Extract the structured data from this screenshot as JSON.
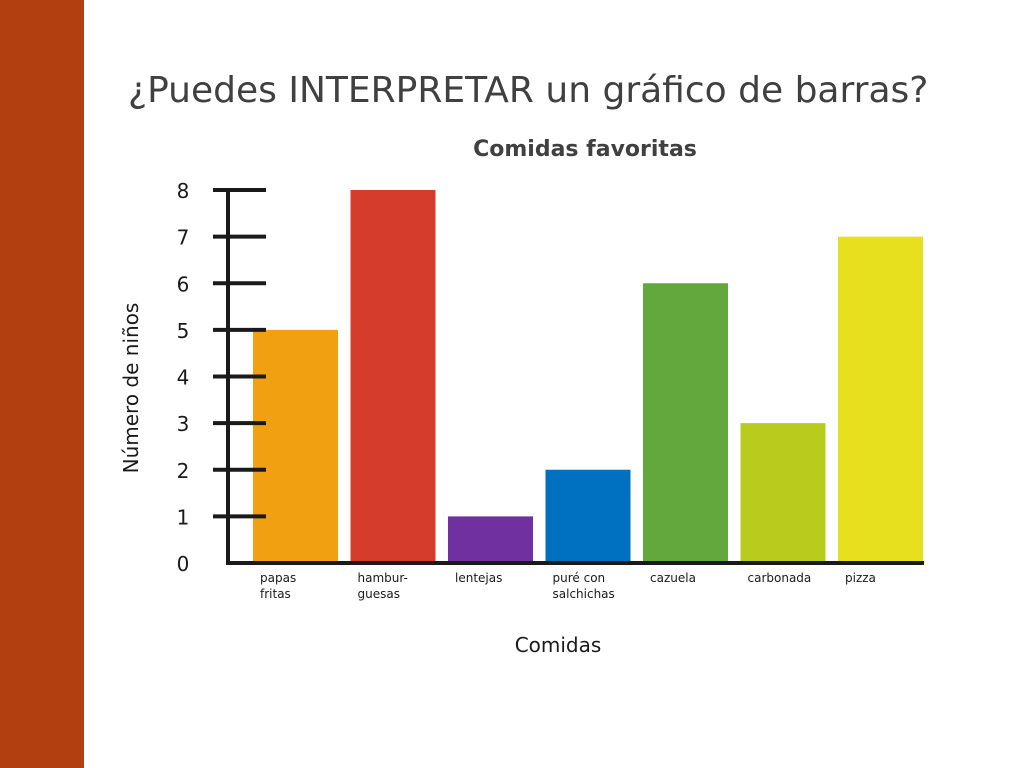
{
  "slide": {
    "title": "¿Puedes INTERPRETAR un gráfico de barras?",
    "side_band_color": "#b23f0f"
  },
  "chart_data": {
    "type": "bar",
    "title": "Comidas favoritas",
    "xlabel": "Comidas",
    "ylabel": "Número de niños",
    "ylim": [
      0,
      8
    ],
    "yticks": [
      0,
      1,
      2,
      3,
      4,
      5,
      6,
      7,
      8
    ],
    "grid": false,
    "categories": [
      [
        "papas",
        "fritas"
      ],
      [
        "hambur-",
        "guesas"
      ],
      [
        "lentejas"
      ],
      [
        "puré con",
        "salchichas"
      ],
      [
        "cazuela"
      ],
      [
        "carbonada"
      ],
      [
        "pizza"
      ]
    ],
    "values": [
      5,
      8,
      1,
      2,
      6,
      3,
      7
    ],
    "colors": [
      "#f0a010",
      "#d63c2c",
      "#7030a0",
      "#0070c0",
      "#62a83c",
      "#b8cc1e",
      "#e6e01e"
    ]
  }
}
